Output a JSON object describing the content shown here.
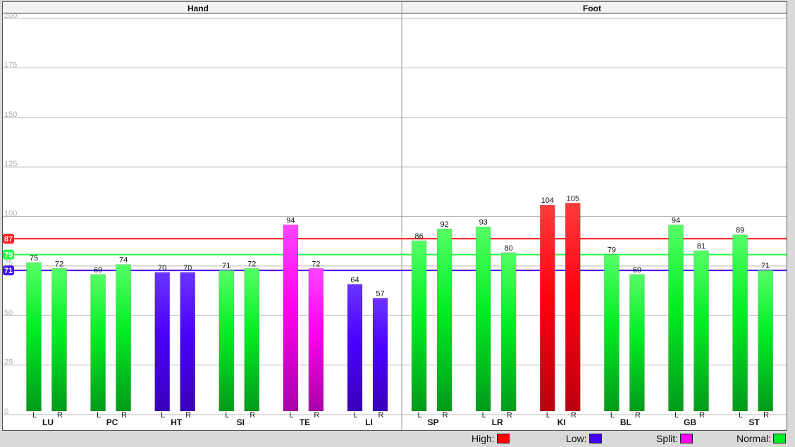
{
  "chart_data": {
    "type": "bar",
    "panels": [
      {
        "title": "Hand",
        "meridians": [
          {
            "name": "LU",
            "L": 75,
            "R": 72,
            "L_status": "normal",
            "R_status": "normal"
          },
          {
            "name": "PC",
            "L": 69,
            "R": 74,
            "L_status": "normal",
            "R_status": "normal"
          },
          {
            "name": "HT",
            "L": 70,
            "R": 70,
            "L_status": "low",
            "R_status": "low"
          },
          {
            "name": "SI",
            "L": 71,
            "R": 72,
            "L_status": "normal",
            "R_status": "normal"
          },
          {
            "name": "TE",
            "L": 94,
            "R": 72,
            "L_status": "split",
            "R_status": "split"
          },
          {
            "name": "LI",
            "L": 64,
            "R": 57,
            "L_status": "low",
            "R_status": "low"
          }
        ]
      },
      {
        "title": "Foot",
        "meridians": [
          {
            "name": "SP",
            "L": 86,
            "R": 92,
            "L_status": "normal",
            "R_status": "normal"
          },
          {
            "name": "LR",
            "L": 93,
            "R": 80,
            "L_status": "normal",
            "R_status": "normal"
          },
          {
            "name": "KI",
            "L": 104,
            "R": 105,
            "L_status": "high",
            "R_status": "high"
          },
          {
            "name": "BL",
            "L": 79,
            "R": 69,
            "L_status": "normal",
            "R_status": "normal"
          },
          {
            "name": "GB",
            "L": 94,
            "R": 81,
            "L_status": "normal",
            "R_status": "normal"
          },
          {
            "name": "ST",
            "L": 89,
            "R": 71,
            "L_status": "normal",
            "R_status": "normal"
          }
        ]
      }
    ],
    "side_labels": [
      "L",
      "R"
    ],
    "y_ticks": [
      0,
      25,
      50,
      75,
      100,
      125,
      150,
      175,
      200
    ],
    "ylim": [
      0,
      200
    ],
    "reference_lines": [
      {
        "label": "87",
        "value": 87,
        "color": "#ff1a1a"
      },
      {
        "label": "79",
        "value": 79,
        "color": "#22ff44"
      },
      {
        "label": "71",
        "value": 71,
        "color": "#4411ff"
      }
    ],
    "grid": true
  },
  "colors": {
    "high": [
      "#ff3b3b",
      "#ff0010",
      "#b8000e"
    ],
    "low": [
      "#6a33ff",
      "#4a00ff",
      "#3a00b8"
    ],
    "split": [
      "#ff44ff",
      "#ff00ee",
      "#a800a8"
    ],
    "normal": [
      "#55ff66",
      "#00ee22",
      "#009a1a"
    ]
  },
  "legend": [
    {
      "label": "High:",
      "color": "#ff0000"
    },
    {
      "label": "Low:",
      "color": "#4400ff"
    },
    {
      "label": "Split:",
      "color": "#ff00ee"
    },
    {
      "label": "Normal:",
      "color": "#00ee22"
    }
  ]
}
